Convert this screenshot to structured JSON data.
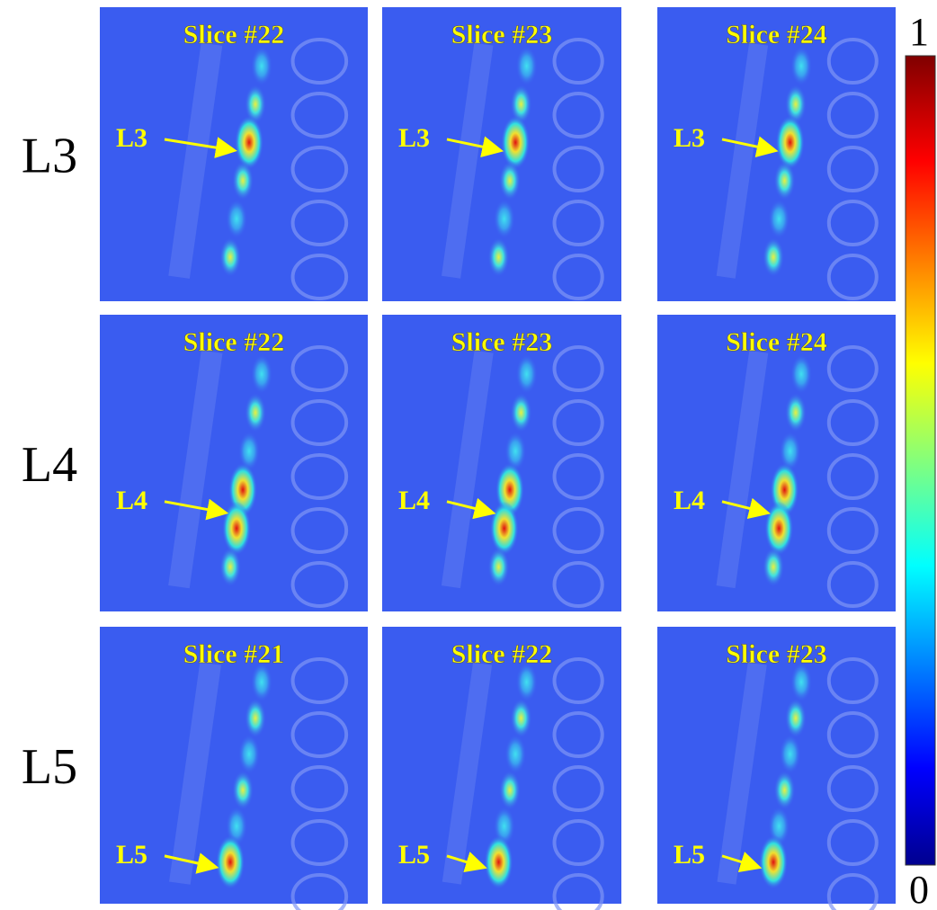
{
  "rows": [
    {
      "label": "L3",
      "panels": [
        {
          "title": "Slice #22",
          "arrow_label": "L3"
        },
        {
          "title": "Slice #23",
          "arrow_label": "L3"
        },
        {
          "title": "Slice #24",
          "arrow_label": "L3"
        }
      ]
    },
    {
      "label": "L4",
      "panels": [
        {
          "title": "Slice #22",
          "arrow_label": "L4"
        },
        {
          "title": "Slice #23",
          "arrow_label": "L4"
        },
        {
          "title": "Slice #24",
          "arrow_label": "L4"
        }
      ]
    },
    {
      "label": "L5",
      "panels": [
        {
          "title": "Slice #21",
          "arrow_label": "L5"
        },
        {
          "title": "Slice #22",
          "arrow_label": "L5"
        },
        {
          "title": "Slice #23",
          "arrow_label": "L5"
        }
      ]
    }
  ],
  "colorbar": {
    "max": "1",
    "min": "0"
  }
}
